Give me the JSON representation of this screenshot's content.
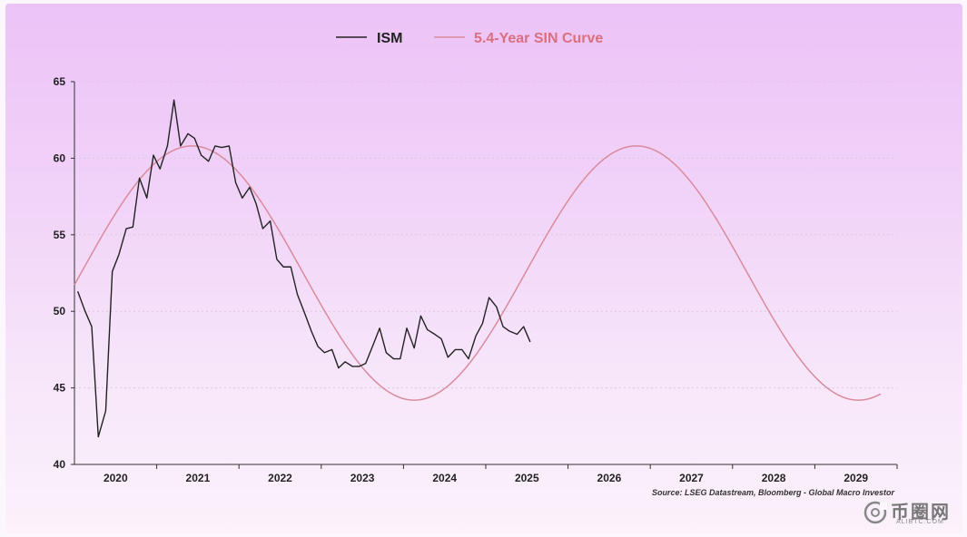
{
  "chart_data": {
    "type": "line",
    "source": "Source: LSEG Datastream, Bloomberg - Global Macro Investor",
    "ylim": [
      40,
      65
    ],
    "y_ticks": [
      40,
      45,
      50,
      55,
      60,
      65
    ],
    "x_range": [
      2019.5,
      2029.5
    ],
    "x_tick_labels": [
      "2020",
      "2021",
      "2022",
      "2023",
      "2024",
      "2025",
      "2026",
      "2027",
      "2028",
      "2029"
    ],
    "grid": "horizontal-dashed",
    "legend_position": "top-center",
    "series": [
      {
        "name": "ISM",
        "color": "#222222",
        "points": [
          [
            2019.54,
            51.3
          ],
          [
            2019.63,
            50.0
          ],
          [
            2019.71,
            49.0
          ],
          [
            2019.79,
            41.8
          ],
          [
            2019.88,
            43.5
          ],
          [
            2019.96,
            52.6
          ],
          [
            2020.04,
            53.7
          ],
          [
            2020.13,
            55.4
          ],
          [
            2020.21,
            55.5
          ],
          [
            2020.29,
            58.7
          ],
          [
            2020.38,
            57.4
          ],
          [
            2020.46,
            60.2
          ],
          [
            2020.54,
            59.3
          ],
          [
            2020.63,
            60.8
          ],
          [
            2020.71,
            63.8
          ],
          [
            2020.79,
            60.8
          ],
          [
            2020.88,
            61.6
          ],
          [
            2020.96,
            61.3
          ],
          [
            2021.04,
            60.2
          ],
          [
            2021.13,
            59.8
          ],
          [
            2021.21,
            60.8
          ],
          [
            2021.29,
            60.7
          ],
          [
            2021.38,
            60.8
          ],
          [
            2021.46,
            58.4
          ],
          [
            2021.54,
            57.4
          ],
          [
            2021.63,
            58.1
          ],
          [
            2021.71,
            57.0
          ],
          [
            2021.79,
            55.4
          ],
          [
            2021.88,
            55.9
          ],
          [
            2021.96,
            53.4
          ],
          [
            2022.04,
            52.9
          ],
          [
            2022.13,
            52.9
          ],
          [
            2022.21,
            51.1
          ],
          [
            2022.29,
            50.0
          ],
          [
            2022.38,
            48.7
          ],
          [
            2022.46,
            47.7
          ],
          [
            2022.54,
            47.3
          ],
          [
            2022.63,
            47.5
          ],
          [
            2022.71,
            46.3
          ],
          [
            2022.79,
            46.7
          ],
          [
            2022.88,
            46.4
          ],
          [
            2022.96,
            46.4
          ],
          [
            2023.04,
            46.6
          ],
          [
            2023.13,
            47.8
          ],
          [
            2023.21,
            48.9
          ],
          [
            2023.29,
            47.3
          ],
          [
            2023.38,
            46.9
          ],
          [
            2023.46,
            46.9
          ],
          [
            2023.54,
            48.9
          ],
          [
            2023.63,
            47.6
          ],
          [
            2023.71,
            49.7
          ],
          [
            2023.79,
            48.8
          ],
          [
            2023.88,
            48.5
          ],
          [
            2023.96,
            48.2
          ],
          [
            2024.04,
            47.0
          ],
          [
            2024.13,
            47.5
          ],
          [
            2024.21,
            47.5
          ],
          [
            2024.29,
            46.9
          ],
          [
            2024.38,
            48.4
          ],
          [
            2024.46,
            49.2
          ],
          [
            2024.54,
            50.9
          ],
          [
            2024.63,
            50.3
          ],
          [
            2024.71,
            49.0
          ],
          [
            2024.79,
            48.7
          ],
          [
            2024.88,
            48.5
          ],
          [
            2024.96,
            49.0
          ],
          [
            2025.04,
            48.0
          ]
        ]
      },
      {
        "name": "5.4-Year SIN Curve",
        "color": "#d98b9b",
        "mean": 52.5,
        "amplitude": 8.3,
        "period_years": 5.4,
        "peak_x": 2020.93,
        "points": [
          [
            2019.5,
            51.6
          ],
          [
            2020.0,
            55.8
          ],
          [
            2020.5,
            59.4
          ],
          [
            2020.93,
            60.8
          ],
          [
            2021.5,
            59.5
          ],
          [
            2022.0,
            56.4
          ],
          [
            2022.5,
            52.1
          ],
          [
            2023.0,
            47.6
          ],
          [
            2023.5,
            44.6
          ],
          [
            2023.63,
            44.2
          ],
          [
            2024.0,
            44.6
          ],
          [
            2024.5,
            47.3
          ],
          [
            2025.0,
            51.4
          ],
          [
            2025.5,
            55.7
          ],
          [
            2026.0,
            59.2
          ],
          [
            2026.33,
            60.8
          ],
          [
            2026.5,
            60.6
          ],
          [
            2027.0,
            58.6
          ],
          [
            2027.5,
            54.8
          ],
          [
            2028.0,
            50.2
          ],
          [
            2028.5,
            46.3
          ],
          [
            2029.0,
            44.2
          ],
          [
            2029.3,
            44.2
          ]
        ]
      }
    ]
  },
  "watermark": {
    "text": "币圈网",
    "subtext": "ALIBTC.COM"
  }
}
